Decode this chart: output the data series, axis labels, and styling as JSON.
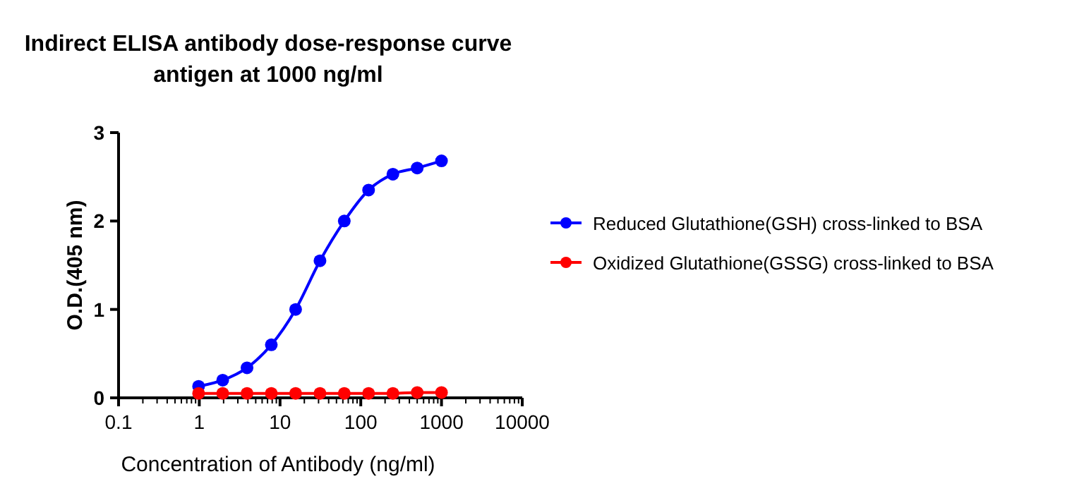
{
  "chart_data": {
    "type": "line",
    "title": "Indirect ELISA antibody dose-response curve",
    "subtitle": "antigen at 1000 ng/ml",
    "xlabel": "Concentration of Antibody (ng/ml)",
    "ylabel": "O.D.(405 nm)",
    "x": [
      0.98,
      1.95,
      3.9,
      7.8,
      15.6,
      31.25,
      62.5,
      125,
      250,
      500,
      1000
    ],
    "series": [
      {
        "name": "Reduced Glutathione(GSH) cross-linked to BSA",
        "color": "#0000ff",
        "values": [
          0.13,
          0.2,
          0.34,
          0.6,
          1.0,
          1.55,
          2.0,
          2.35,
          2.53,
          2.6,
          2.68
        ]
      },
      {
        "name": "Oxidized Glutathione(GSSG) cross-linked to BSA",
        "color": "#ff0000",
        "values": [
          0.05,
          0.05,
          0.05,
          0.05,
          0.05,
          0.05,
          0.05,
          0.05,
          0.05,
          0.06,
          0.06
        ]
      }
    ],
    "log": "x",
    "xlim": [
      0.1,
      10000
    ],
    "xticks": [
      0.1,
      1,
      10,
      100,
      1000,
      10000
    ],
    "ylim": [
      0,
      3
    ],
    "yticks": [
      0,
      1,
      2,
      3
    ],
    "grid": false,
    "legend": "right",
    "marker": "circle",
    "line_style": "solid"
  }
}
